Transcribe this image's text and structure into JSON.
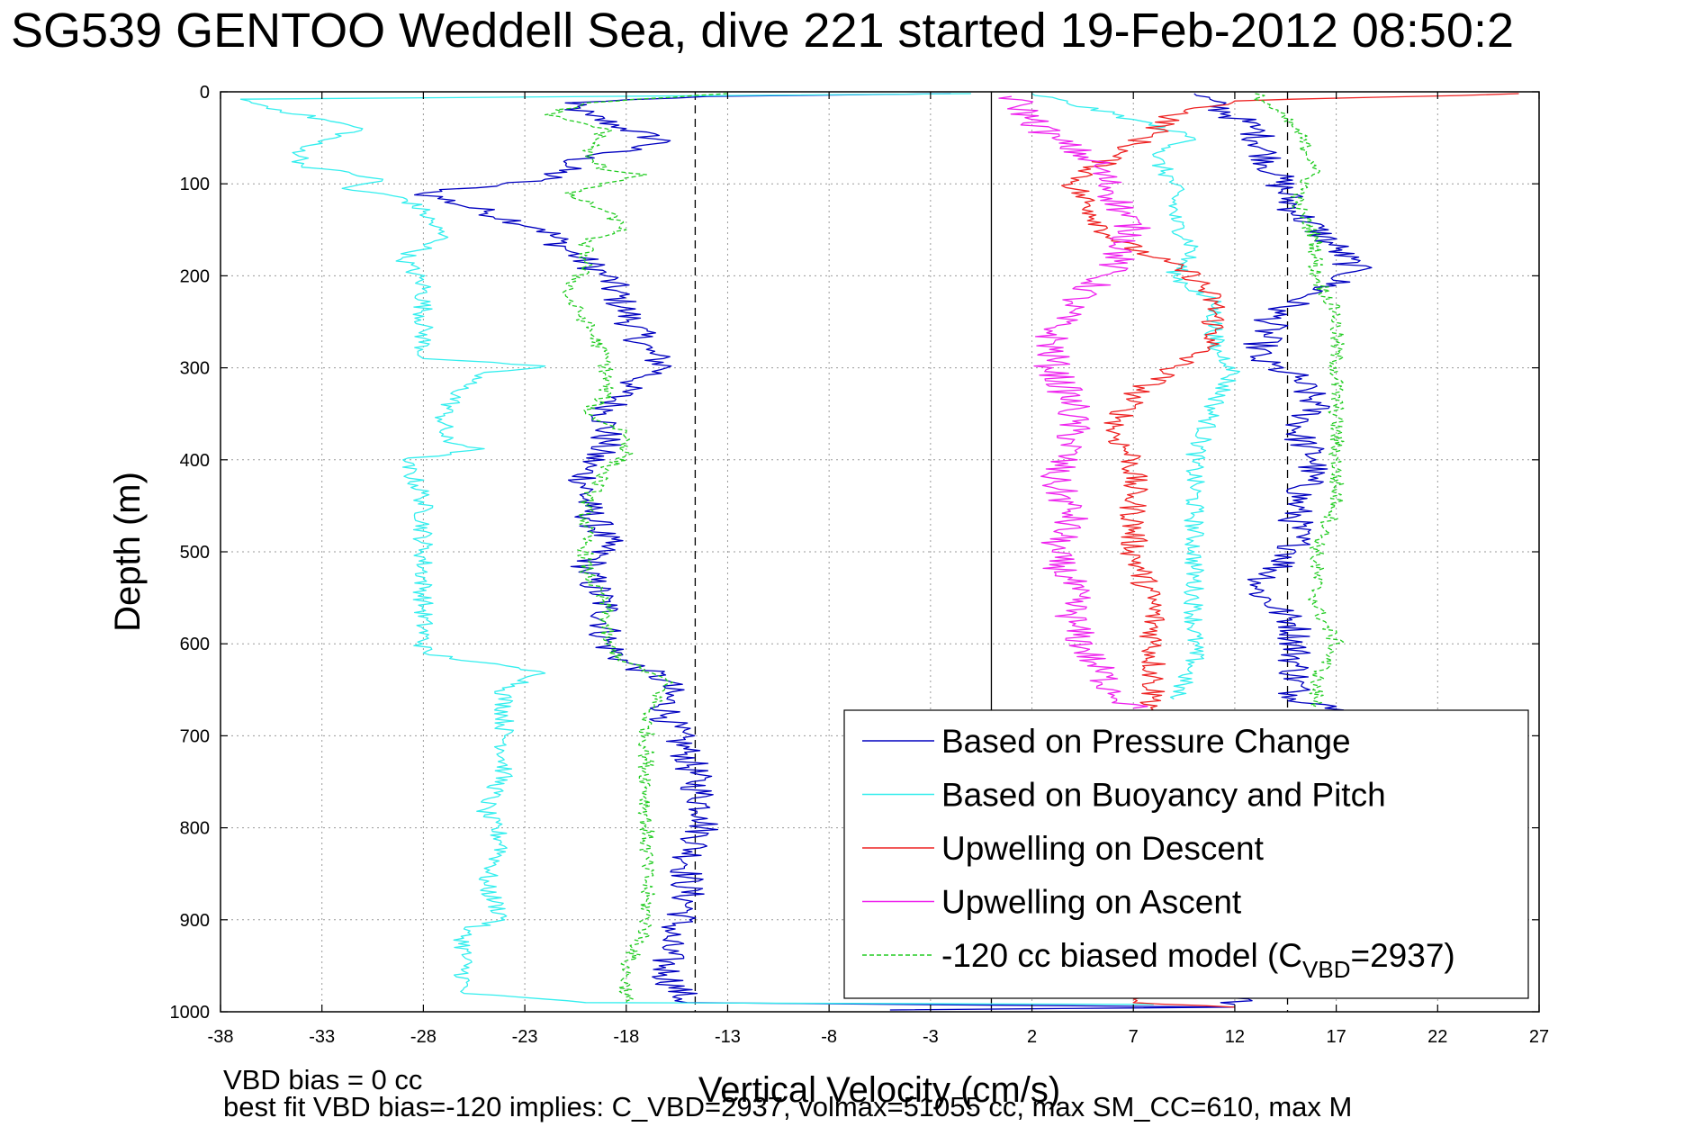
{
  "chart_data": {
    "type": "line",
    "title": "SG539 GENTOO Weddell Sea, dive 221 started 19-Feb-2012 08:50:2",
    "xlabel": "Vertical Velocity (cm/s)",
    "ylabel": "Depth (m)",
    "xlim": [
      -38,
      27
    ],
    "ylim": [
      0,
      1000
    ],
    "y_reversed": true,
    "grid": true,
    "xticks": [
      -38,
      -33,
      -28,
      -23,
      -18,
      -13,
      -8,
      -3,
      2,
      7,
      12,
      17,
      22,
      27
    ],
    "xtick_labels": [
      "-38",
      "-33",
      "-28",
      "-23",
      "-18",
      "-13",
      "-8",
      "-3",
      "2",
      "7",
      "12",
      "17",
      "22",
      "27"
    ],
    "yticks": [
      0,
      100,
      200,
      300,
      400,
      500,
      600,
      700,
      800,
      900,
      1000
    ],
    "ytick_labels": [
      "0",
      "100",
      "200",
      "300",
      "400",
      "500",
      "600",
      "700",
      "800",
      "900",
      "1000"
    ],
    "legend_position": "lower-right",
    "reference_lines": [
      {
        "x": -14.6,
        "style": "dashed",
        "color": "#000000"
      },
      {
        "x": 0,
        "style": "solid",
        "color": "#000000"
      },
      {
        "x": 14.6,
        "style": "dashed",
        "color": "#000000"
      }
    ],
    "footer": [
      "VBD bias = 0 cc",
      "best fit VBD bias=-120 implies: C_VBD=2937, volmax=51055 cc, max SM_CC=610, max M"
    ],
    "series": [
      {
        "name": "Based on Pressure Change",
        "color": "#0000c0",
        "style": "solid",
        "noise": 0.9,
        "points": [
          [
            -2,
            2
          ],
          [
            -14,
            5
          ],
          [
            -21,
            12
          ],
          [
            -20,
            25
          ],
          [
            -18,
            40
          ],
          [
            -16,
            55
          ],
          [
            -20,
            70
          ],
          [
            -22,
            95
          ],
          [
            -28,
            110
          ],
          [
            -25,
            130
          ],
          [
            -22,
            150
          ],
          [
            -21,
            170
          ],
          [
            -19,
            200
          ],
          [
            -18,
            240
          ],
          [
            -17,
            280
          ],
          [
            -16,
            300
          ],
          [
            -18,
            320
          ],
          [
            -19,
            350
          ],
          [
            -19,
            380
          ],
          [
            -20,
            410
          ],
          [
            -20,
            450
          ],
          [
            -19,
            490
          ],
          [
            -20,
            520
          ],
          [
            -19,
            560
          ],
          [
            -19,
            600
          ],
          [
            -18,
            620
          ],
          [
            -16,
            640
          ],
          [
            -16,
            680
          ],
          [
            -15,
            720
          ],
          [
            -14,
            790
          ],
          [
            -15,
            840
          ],
          [
            -15,
            890
          ],
          [
            -16,
            920
          ],
          [
            -16,
            960
          ],
          [
            -15,
            990
          ],
          [
            12,
            995
          ],
          [
            -5,
            998
          ],
          [
            10,
            2
          ],
          [
            13,
            40
          ],
          [
            14,
            90
          ],
          [
            15,
            130
          ],
          [
            17,
            170
          ],
          [
            18,
            195
          ],
          [
            14,
            240
          ],
          [
            13,
            290
          ],
          [
            15,
            310
          ],
          [
            16,
            340
          ],
          [
            15,
            370
          ],
          [
            16,
            400
          ],
          [
            15,
            450
          ],
          [
            15,
            500
          ],
          [
            13,
            540
          ],
          [
            15,
            580
          ],
          [
            15,
            620
          ],
          [
            15,
            660
          ],
          [
            17,
            668
          ],
          [
            12,
            992
          ]
        ]
      },
      {
        "name": "Based on Buoyancy and Pitch",
        "color": "#33eeee",
        "style": "solid",
        "noise": 0.5,
        "points": [
          [
            -1,
            2
          ],
          [
            -37,
            8
          ],
          [
            -35,
            20
          ],
          [
            -31,
            40
          ],
          [
            -34,
            60
          ],
          [
            -34,
            80
          ],
          [
            -30,
            95
          ],
          [
            -32,
            105
          ],
          [
            -29,
            115
          ],
          [
            -28,
            130
          ],
          [
            -27,
            160
          ],
          [
            -29,
            180
          ],
          [
            -28,
            210
          ],
          [
            -28,
            260
          ],
          [
            -28,
            290
          ],
          [
            -22,
            298
          ],
          [
            -25,
            305
          ],
          [
            -26,
            320
          ],
          [
            -27,
            350
          ],
          [
            -27,
            380
          ],
          [
            -25,
            388
          ],
          [
            -29,
            400
          ],
          [
            -28,
            440
          ],
          [
            -28,
            500
          ],
          [
            -28,
            560
          ],
          [
            -28,
            610
          ],
          [
            -22,
            632
          ],
          [
            -24,
            650
          ],
          [
            -24,
            700
          ],
          [
            -24,
            740
          ],
          [
            -25,
            780
          ],
          [
            -24,
            820
          ],
          [
            -25,
            860
          ],
          [
            -24,
            900
          ],
          [
            -26,
            910
          ],
          [
            -26,
            950
          ],
          [
            -26,
            980
          ],
          [
            -20,
            990
          ],
          [
            8,
            992
          ],
          [
            2,
            2
          ],
          [
            7,
            30
          ],
          [
            10,
            50
          ],
          [
            8,
            70
          ],
          [
            9,
            100
          ],
          [
            9,
            140
          ],
          [
            10,
            170
          ],
          [
            9,
            200
          ],
          [
            11,
            230
          ],
          [
            11,
            280
          ],
          [
            12,
            300
          ],
          [
            11,
            340
          ],
          [
            10,
            400
          ],
          [
            10,
            460
          ],
          [
            10,
            500
          ],
          [
            10,
            560
          ],
          [
            10,
            620
          ],
          [
            9,
            660
          ]
        ]
      },
      {
        "name": "Upwelling on Descent",
        "color": "#ee2222",
        "style": "solid",
        "noise": 0.7,
        "points": [
          [
            26,
            2
          ],
          [
            12,
            10
          ],
          [
            9,
            25
          ],
          [
            8,
            45
          ],
          [
            6,
            70
          ],
          [
            4,
            100
          ],
          [
            5,
            130
          ],
          [
            6,
            160
          ],
          [
            8,
            180
          ],
          [
            10,
            200
          ],
          [
            11,
            230
          ],
          [
            11,
            270
          ],
          [
            9,
            300
          ],
          [
            7,
            330
          ],
          [
            6,
            370
          ],
          [
            7,
            400
          ],
          [
            7,
            440
          ],
          [
            7,
            500
          ],
          [
            8,
            560
          ],
          [
            8,
            600
          ],
          [
            8,
            640
          ],
          [
            8,
            660
          ],
          [
            8,
            675
          ],
          [
            7,
            990
          ],
          [
            12,
            995
          ]
        ]
      },
      {
        "name": "Upwelling on Ascent",
        "color": "#ee22ee",
        "style": "solid",
        "noise": 0.9,
        "points": [
          [
            1,
            5
          ],
          [
            2,
            30
          ],
          [
            3,
            50
          ],
          [
            5,
            75
          ],
          [
            6,
            110
          ],
          [
            7,
            150
          ],
          [
            6,
            190
          ],
          [
            4,
            230
          ],
          [
            3,
            260
          ],
          [
            3,
            300
          ],
          [
            4,
            340
          ],
          [
            4,
            380
          ],
          [
            3,
            420
          ],
          [
            4,
            460
          ],
          [
            3,
            500
          ],
          [
            4,
            540
          ],
          [
            4,
            580
          ],
          [
            5,
            620
          ],
          [
            6,
            650
          ],
          [
            7,
            670
          ]
        ]
      },
      {
        "name": "-120 cc biased model (C_VBD=2937)",
        "color": "#22cc22",
        "style": "dashed",
        "noise": 0.4,
        "points": [
          [
            -13,
            2
          ],
          [
            -20,
            12
          ],
          [
            -22,
            25
          ],
          [
            -19,
            40
          ],
          [
            -20,
            70
          ],
          [
            -19,
            85
          ],
          [
            -17,
            90
          ],
          [
            -21,
            110
          ],
          [
            -19,
            130
          ],
          [
            -18,
            150
          ],
          [
            -20,
            160
          ],
          [
            -20,
            190
          ],
          [
            -21,
            220
          ],
          [
            -20,
            250
          ],
          [
            -19,
            290
          ],
          [
            -19,
            330
          ],
          [
            -20,
            350
          ],
          [
            -18,
            370
          ],
          [
            -18,
            395
          ],
          [
            -19,
            410
          ],
          [
            -20,
            450
          ],
          [
            -20,
            490
          ],
          [
            -20,
            520
          ],
          [
            -19,
            560
          ],
          [
            -19,
            600
          ],
          [
            -18,
            620
          ],
          [
            -16,
            640
          ],
          [
            -17,
            680
          ],
          [
            -17,
            720
          ],
          [
            -17,
            760
          ],
          [
            -17,
            800
          ],
          [
            -17,
            840
          ],
          [
            -17,
            880
          ],
          [
            -17,
            910
          ],
          [
            -18,
            950
          ],
          [
            -18,
            990
          ],
          [
            13,
            2
          ],
          [
            15,
            40
          ],
          [
            16,
            80
          ],
          [
            15,
            120
          ],
          [
            16,
            160
          ],
          [
            16,
            200
          ],
          [
            17,
            240
          ],
          [
            17,
            300
          ],
          [
            17,
            340
          ],
          [
            17,
            400
          ],
          [
            17,
            450
          ],
          [
            16,
            500
          ],
          [
            16,
            560
          ],
          [
            17,
            600
          ],
          [
            16,
            640
          ],
          [
            16,
            668
          ]
        ]
      }
    ]
  }
}
